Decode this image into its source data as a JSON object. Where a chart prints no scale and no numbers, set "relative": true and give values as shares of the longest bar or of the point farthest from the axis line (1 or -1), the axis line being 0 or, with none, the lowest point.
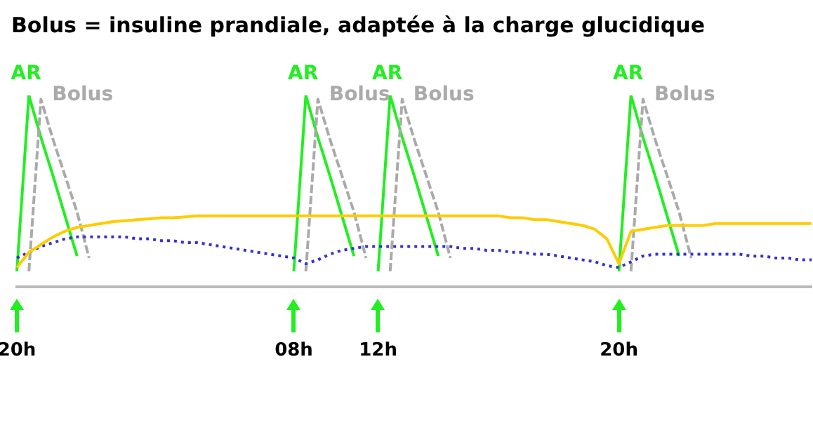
{
  "chart_data": {
    "type": "line",
    "title": "Bolus = insuline prandiale, adaptée à la charge glucidique",
    "relative": true,
    "legend": false,
    "grid": false,
    "marker": "none",
    "categories": [
      "20h",
      null,
      null,
      null,
      null,
      null,
      null,
      null,
      null,
      null,
      null,
      null,
      null,
      null,
      null,
      null,
      null,
      null,
      null,
      null,
      null,
      null,
      null,
      "08h",
      null,
      null,
      null,
      null,
      null,
      null,
      "12h",
      null,
      null,
      null,
      null,
      null,
      null,
      null,
      null,
      null,
      null,
      null,
      null,
      null,
      null,
      null,
      null,
      null,
      null,
      null,
      "20h",
      null,
      null,
      null,
      null,
      null,
      null,
      null,
      null,
      null,
      null,
      null,
      null,
      null,
      null,
      null,
      null
    ],
    "series": [
      {
        "name": null,
        "color": "#ffcc00",
        "line_style": "solid",
        "values": [
          0.1,
          0.18,
          0.22,
          0.26,
          0.29,
          0.31,
          0.32,
          0.33,
          0.34,
          0.345,
          0.35,
          0.355,
          0.36,
          0.36,
          0.365,
          0.37,
          0.37,
          0.37,
          0.37,
          0.37,
          0.37,
          0.37,
          0.37,
          0.37,
          0.37,
          0.37,
          0.37,
          0.37,
          0.37,
          0.37,
          0.37,
          0.37,
          0.37,
          0.37,
          0.37,
          0.37,
          0.37,
          0.37,
          0.37,
          0.37,
          0.37,
          0.36,
          0.36,
          0.35,
          0.35,
          0.34,
          0.33,
          0.32,
          0.3,
          0.25,
          0.12,
          0.29,
          0.3,
          0.31,
          0.32,
          0.32,
          0.32,
          0.32,
          0.33,
          0.33,
          0.33,
          0.33,
          0.33,
          0.33,
          0.33,
          0.33,
          0.33
        ]
      },
      {
        "name": null,
        "color": "#3333cc",
        "line_style": "dotted",
        "values": [
          0.15,
          0.18,
          0.21,
          0.23,
          0.25,
          0.26,
          0.26,
          0.26,
          0.26,
          0.26,
          0.25,
          0.25,
          0.24,
          0.24,
          0.23,
          0.23,
          0.22,
          0.21,
          0.2,
          0.19,
          0.18,
          0.17,
          0.16,
          0.15,
          0.12,
          0.14,
          0.17,
          0.19,
          0.2,
          0.21,
          0.21,
          0.21,
          0.21,
          0.21,
          0.21,
          0.21,
          0.21,
          0.2,
          0.2,
          0.19,
          0.19,
          0.18,
          0.18,
          0.17,
          0.17,
          0.16,
          0.15,
          0.14,
          0.13,
          0.11,
          0.1,
          0.13,
          0.16,
          0.17,
          0.17,
          0.17,
          0.17,
          0.17,
          0.17,
          0.17,
          0.17,
          0.16,
          0.16,
          0.15,
          0.15,
          0.14,
          0.14
        ]
      },
      {
        "name": "Bolus",
        "color": "#aaaaaa",
        "line_style": "dashed",
        "values": [
          null,
          0.08,
          0.98,
          0.77,
          0.58,
          0.39,
          0.15,
          null,
          null,
          null,
          null,
          null,
          null,
          null,
          null,
          null,
          null,
          null,
          null,
          null,
          null,
          null,
          null,
          null,
          0.08,
          0.98,
          0.77,
          0.58,
          0.39,
          0.15,
          null,
          0.08,
          0.98,
          0.77,
          0.58,
          0.39,
          0.15,
          null,
          null,
          null,
          null,
          null,
          null,
          null,
          null,
          null,
          null,
          null,
          null,
          null,
          null,
          0.08,
          0.98,
          0.77,
          0.58,
          0.39,
          0.15,
          null,
          null,
          null,
          null,
          null,
          null,
          null,
          null,
          null,
          null
        ]
      },
      {
        "name": "AR",
        "color": "#22ee22",
        "line_style": "solid",
        "values": [
          0.08,
          1,
          0.78,
          0.58,
          0.37,
          0.16,
          null,
          null,
          null,
          null,
          null,
          null,
          null,
          null,
          null,
          null,
          null,
          null,
          null,
          null,
          null,
          null,
          null,
          0.08,
          1,
          0.78,
          0.58,
          0.37,
          0.16,
          null,
          0.08,
          1,
          0.78,
          0.58,
          0.37,
          0.16,
          null,
          null,
          null,
          null,
          null,
          null,
          null,
          null,
          null,
          null,
          null,
          null,
          null,
          null,
          0.08,
          1,
          0.78,
          0.58,
          0.37,
          0.16,
          null,
          null,
          null,
          null,
          null,
          null,
          null,
          null,
          null,
          null,
          null
        ]
      }
    ]
  }
}
